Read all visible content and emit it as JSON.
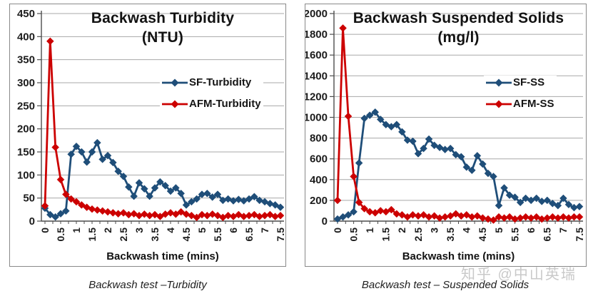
{
  "watermark": {
    "text": "知乎 @中山英瑞",
    "color": "#c9c9c9"
  },
  "colors": {
    "sf_blue": "#1f4e79",
    "afm_red": "#cc0000",
    "gridline": "#a8a8a8",
    "axis": "#4d4d4d",
    "box_border": "#898989"
  },
  "chart_data": [
    {
      "type": "line",
      "title": "Backwash Turbidity",
      "subtitle": "(NTU)",
      "xlabel": "Backwash time (mins)",
      "caption": "Backwash test –Turbidity",
      "grid": true,
      "legend_position": "inside right",
      "ylim": [
        0,
        450
      ],
      "y_step": 50,
      "y_tick_labels": [
        "0",
        "50",
        "100",
        "150",
        "200",
        "250",
        "300",
        "350",
        "400",
        "450"
      ],
      "x_tick_labels": [
        "0",
        "0.5",
        "1",
        "1.5",
        "2",
        "2.5",
        "3",
        "3.5",
        "4",
        "4.5",
        "5",
        "5.5",
        "6",
        "6.5",
        "7",
        "7.5"
      ],
      "x_minor_tick": 0.25,
      "x": [
        0,
        0.167,
        0.333,
        0.5,
        0.667,
        0.833,
        1,
        1.167,
        1.333,
        1.5,
        1.667,
        1.833,
        2,
        2.167,
        2.333,
        2.5,
        2.667,
        2.833,
        3,
        3.167,
        3.333,
        3.5,
        3.667,
        3.833,
        4,
        4.167,
        4.333,
        4.5,
        4.667,
        4.833,
        5,
        5.167,
        5.333,
        5.5,
        5.667,
        5.833,
        6,
        6.167,
        6.333,
        6.5,
        6.667,
        6.833,
        7,
        7.167,
        7.333,
        7.5
      ],
      "series": [
        {
          "name": "SF-Turbidity",
          "color": "#1f4e79",
          "marker": "diamond",
          "values": [
            28,
            14,
            9,
            16,
            22,
            145,
            162,
            150,
            128,
            150,
            170,
            134,
            142,
            127,
            108,
            97,
            74,
            54,
            83,
            70,
            54,
            72,
            85,
            77,
            65,
            72,
            60,
            35,
            42,
            48,
            58,
            60,
            52,
            58,
            45,
            48,
            44,
            47,
            44,
            48,
            53,
            45,
            42,
            38,
            35,
            30
          ]
        },
        {
          "name": "AFM-Turbidity",
          "color": "#cc0000",
          "marker": "diamond",
          "values": [
            33,
            390,
            160,
            90,
            58,
            48,
            42,
            35,
            30,
            26,
            24,
            22,
            20,
            18,
            16,
            18,
            14,
            16,
            12,
            15,
            12,
            14,
            10,
            15,
            18,
            15,
            20,
            15,
            12,
            8,
            14,
            12,
            15,
            12,
            8,
            12,
            10,
            14,
            10,
            12,
            14,
            10,
            12,
            14,
            10,
            12
          ]
        }
      ]
    },
    {
      "type": "line",
      "title": "Backwash Suspended Solids",
      "subtitle": "(mg/l)",
      "xlabel": "Backwash time (mins)",
      "caption": "Backwash test – Suspended Solids",
      "grid": true,
      "legend_position": "inside right",
      "ylim": [
        0,
        2000
      ],
      "y_step": 200,
      "y_tick_labels": [
        "0",
        "200",
        "400",
        "600",
        "800",
        "1000",
        "1200",
        "1400",
        "1600",
        "1800",
        "2000"
      ],
      "x_tick_labels": [
        "0",
        "0.5",
        "1",
        "1.5",
        "2",
        "2.5",
        "3",
        "3.5",
        "4",
        "4.5",
        "5",
        "5.5",
        "6",
        "6.5",
        "7",
        "7.5"
      ],
      "x_minor_tick": 0.25,
      "x": [
        0,
        0.167,
        0.333,
        0.5,
        0.667,
        0.833,
        1,
        1.167,
        1.333,
        1.5,
        1.667,
        1.833,
        2,
        2.167,
        2.333,
        2.5,
        2.667,
        2.833,
        3,
        3.167,
        3.333,
        3.5,
        3.667,
        3.833,
        4,
        4.167,
        4.333,
        4.5,
        4.667,
        4.833,
        5,
        5.167,
        5.333,
        5.5,
        5.667,
        5.833,
        6,
        6.167,
        6.333,
        6.5,
        6.667,
        6.833,
        7,
        7.167,
        7.333,
        7.5
      ],
      "series": [
        {
          "name": "SF-SS",
          "color": "#1f4e79",
          "marker": "diamond",
          "values": [
            20,
            40,
            60,
            90,
            560,
            990,
            1020,
            1050,
            980,
            930,
            910,
            930,
            860,
            780,
            770,
            650,
            700,
            790,
            730,
            710,
            690,
            700,
            640,
            620,
            520,
            490,
            630,
            550,
            460,
            430,
            150,
            320,
            250,
            230,
            180,
            220,
            200,
            220,
            190,
            200,
            170,
            150,
            220,
            160,
            130,
            140
          ]
        },
        {
          "name": "AFM-SS",
          "color": "#cc0000",
          "marker": "diamond",
          "values": [
            200,
            1860,
            1010,
            430,
            180,
            120,
            90,
            80,
            100,
            90,
            110,
            70,
            60,
            40,
            60,
            50,
            60,
            40,
            50,
            30,
            40,
            50,
            70,
            50,
            60,
            40,
            50,
            30,
            20,
            10,
            40,
            30,
            40,
            20,
            30,
            40,
            30,
            40,
            20,
            30,
            40,
            30,
            40,
            30,
            40,
            40
          ]
        }
      ]
    }
  ]
}
